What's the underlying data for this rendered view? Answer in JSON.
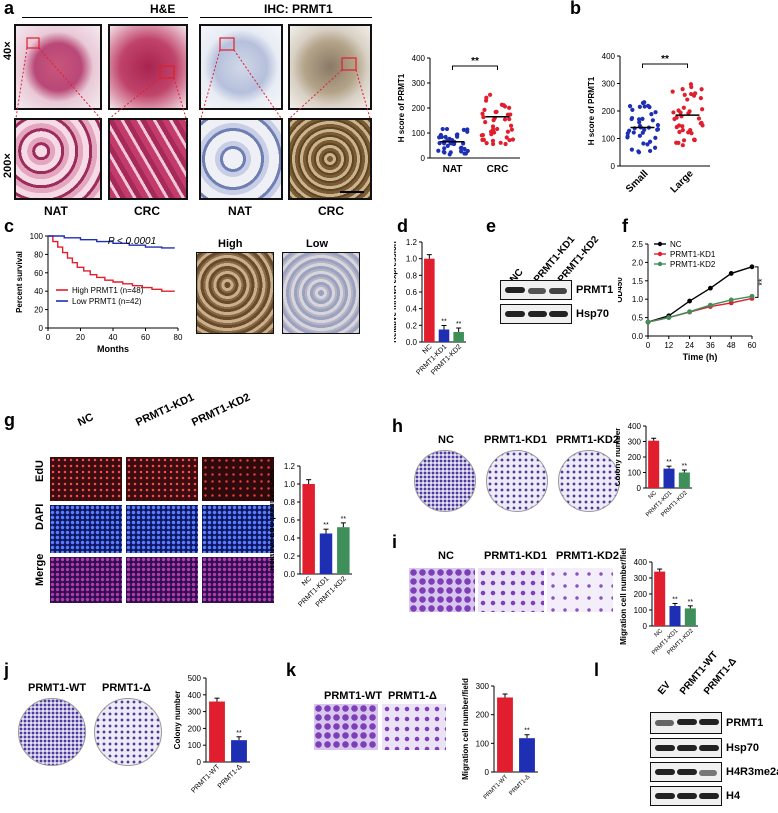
{
  "panels": {
    "a": {
      "label": "a",
      "he_title": "H&E",
      "ihc_title": "IHC: PRMT1",
      "mag_40": "40×",
      "mag_200": "200×",
      "nat": "NAT",
      "crc": "CRC"
    },
    "b": {
      "label": "b"
    },
    "c": {
      "label": "c",
      "high": "High",
      "low": "Low"
    },
    "d": {
      "label": "d"
    },
    "e": {
      "label": "e",
      "lanes": [
        "NC",
        "PRMT1-KD1",
        "PRMT1-KD2"
      ],
      "bands": [
        "PRMT1",
        "Hsp70"
      ]
    },
    "f": {
      "label": "f"
    },
    "g": {
      "label": "g",
      "cols": [
        "NC",
        "PRMT1-KD1",
        "PRMT1-KD2"
      ],
      "rows": [
        "EdU",
        "DAPI",
        "Merge"
      ]
    },
    "h": {
      "label": "h",
      "cols": [
        "NC",
        "PRMT1-KD1",
        "PRMT1-KD2"
      ]
    },
    "i": {
      "label": "i",
      "cols": [
        "NC",
        "PRMT1-KD1",
        "PRMT1-KD2"
      ]
    },
    "j": {
      "label": "j",
      "cols": [
        "PRMT1-WT",
        "PRMT1-Δ"
      ]
    },
    "k": {
      "label": "k",
      "cols": [
        "PRMT1-WT",
        "PRMT1-Δ"
      ]
    },
    "l": {
      "label": "l",
      "lanes": [
        "EV",
        "PRMT1-WT",
        "PRMT1-Δ"
      ],
      "bands": [
        "PRMT1",
        "Hsp70",
        "H4R3me2a",
        "H4"
      ]
    }
  },
  "chart_data": [
    {
      "id": "a",
      "type": "scatter",
      "ylabel": "H score of PRMT1",
      "categories": [
        "NAT",
        "CRC"
      ],
      "means": [
        65,
        165
      ],
      "ylim": [
        0,
        400
      ],
      "yticks": [
        0,
        100,
        200,
        300,
        400
      ],
      "signif": "**",
      "colors": [
        "#1f2fb3",
        "#e01e2d"
      ]
    },
    {
      "id": "b",
      "type": "scatter",
      "ylabel": "H score of PRMT1",
      "categories": [
        "Small",
        "Large"
      ],
      "means": [
        140,
        185
      ],
      "ylim": [
        0,
        400
      ],
      "yticks": [
        0,
        100,
        200,
        300,
        400
      ],
      "signif": "**",
      "colors": [
        "#1f2fb3",
        "#e01e2d"
      ]
    },
    {
      "id": "c",
      "type": "line",
      "ylabel": "Percent survival",
      "xlabel": "Months",
      "xlim": [
        0,
        80
      ],
      "ylim": [
        0,
        100
      ],
      "xticks": [
        0,
        20,
        40,
        60,
        80
      ],
      "yticks": [
        0,
        20,
        40,
        60,
        80,
        100
      ],
      "annotation": "P < 0.0001",
      "series": [
        {
          "name": "High PRMT1 (n=48)",
          "color": "#e01e2d",
          "x": [
            0,
            3,
            6,
            9,
            12,
            15,
            18,
            22,
            26,
            30,
            35,
            40,
            46,
            52,
            58,
            64,
            70,
            78
          ],
          "y": [
            100,
            94,
            88,
            82,
            76,
            71,
            66,
            62,
            58,
            55,
            52,
            50,
            48,
            46,
            44,
            42,
            40,
            40
          ]
        },
        {
          "name": "Low PRMT1 (n=42)",
          "color": "#1f2fb3",
          "x": [
            0,
            10,
            20,
            30,
            40,
            50,
            60,
            70,
            78
          ],
          "y": [
            100,
            98,
            96,
            94,
            92,
            90,
            88,
            87,
            87
          ]
        }
      ]
    },
    {
      "id": "d",
      "type": "bar",
      "ylabel": "Relative mRNA expression",
      "categories": [
        "NC",
        "PRMT1-KD1",
        "PRMT1-KD2"
      ],
      "values": [
        1.0,
        0.15,
        0.12
      ],
      "ylim": [
        0,
        1.2
      ],
      "yticks": [
        "0.0",
        "0.2",
        "0.4",
        "0.6",
        "0.8",
        "1.0",
        "1.2"
      ],
      "colors": [
        "#e01e2d",
        "#1f2fb3",
        "#3f8f5a"
      ],
      "signif": [
        "",
        "**",
        "**"
      ]
    },
    {
      "id": "f",
      "type": "line",
      "ylabel": "OD450",
      "xlabel": "Time (h)",
      "xlim": [
        0,
        60
      ],
      "ylim": [
        0,
        2.5
      ],
      "xticks": [
        0,
        12,
        24,
        36,
        48,
        60
      ],
      "yticks": [
        "0.0",
        "0.5",
        "1.0",
        "1.5",
        "2.0",
        "2.5"
      ],
      "signif": "**",
      "series": [
        {
          "name": "NC",
          "color": "#000000",
          "x": [
            0,
            12,
            24,
            36,
            48,
            60
          ],
          "y": [
            0.38,
            0.55,
            0.95,
            1.3,
            1.7,
            1.88
          ]
        },
        {
          "name": "PRMT1-KD1",
          "color": "#e01e2d",
          "x": [
            0,
            12,
            24,
            36,
            48,
            60
          ],
          "y": [
            0.38,
            0.5,
            0.65,
            0.8,
            0.9,
            1.02
          ]
        },
        {
          "name": "PRMT1-KD2",
          "color": "#3f8f5a",
          "x": [
            0,
            12,
            24,
            36,
            48,
            60
          ],
          "y": [
            0.38,
            0.5,
            0.66,
            0.84,
            0.98,
            1.08
          ]
        }
      ]
    },
    {
      "id": "g",
      "type": "bar",
      "ylabel": "Relative EdU positive cells",
      "categories": [
        "NC",
        "PRMT1-KD1",
        "PRMT1-KD2"
      ],
      "values": [
        1.0,
        0.45,
        0.52
      ],
      "ylim": [
        0,
        1.2
      ],
      "yticks": [
        "0.0",
        "0.2",
        "0.4",
        "0.6",
        "0.8",
        "1.0",
        "1.2"
      ],
      "colors": [
        "#e01e2d",
        "#1f2fb3",
        "#3f8f5a"
      ],
      "signif": [
        "",
        "**",
        "**"
      ]
    },
    {
      "id": "h",
      "type": "bar",
      "ylabel": "Colony number",
      "categories": [
        "NC",
        "PRMT1-KD1",
        "PRMT1-KD2"
      ],
      "values": [
        305,
        125,
        100
      ],
      "ylim": [
        0,
        400
      ],
      "yticks": [
        0,
        100,
        200,
        300,
        400
      ],
      "colors": [
        "#e01e2d",
        "#1f2fb3",
        "#3f8f5a"
      ],
      "signif": [
        "",
        "**",
        "**"
      ]
    },
    {
      "id": "i",
      "type": "bar",
      "ylabel": "Migration cell number/field",
      "categories": [
        "NC",
        "PRMT1-KD1",
        "PRMT1-KD2"
      ],
      "values": [
        340,
        125,
        110
      ],
      "ylim": [
        0,
        400
      ],
      "yticks": [
        0,
        100,
        200,
        300,
        400
      ],
      "colors": [
        "#e01e2d",
        "#1f2fb3",
        "#3f8f5a"
      ],
      "signif": [
        "",
        "**",
        "**"
      ]
    },
    {
      "id": "j",
      "type": "bar",
      "ylabel": "Colony number",
      "categories": [
        "PRMT1-WT",
        "PRMT1-Δ"
      ],
      "values": [
        360,
        130
      ],
      "ylim": [
        0,
        500
      ],
      "yticks": [
        0,
        100,
        200,
        300,
        400,
        500
      ],
      "colors": [
        "#e01e2d",
        "#1f2fb3"
      ],
      "signif": [
        "",
        "**"
      ]
    },
    {
      "id": "k",
      "type": "bar",
      "ylabel": "Migration cell number/field",
      "categories": [
        "PRMT1-WT",
        "PRMT1-Δ"
      ],
      "values": [
        260,
        118
      ],
      "ylim": [
        0,
        300
      ],
      "yticks": [
        0,
        100,
        200,
        300
      ],
      "colors": [
        "#e01e2d",
        "#1f2fb3"
      ],
      "signif": [
        "",
        "**"
      ]
    }
  ]
}
